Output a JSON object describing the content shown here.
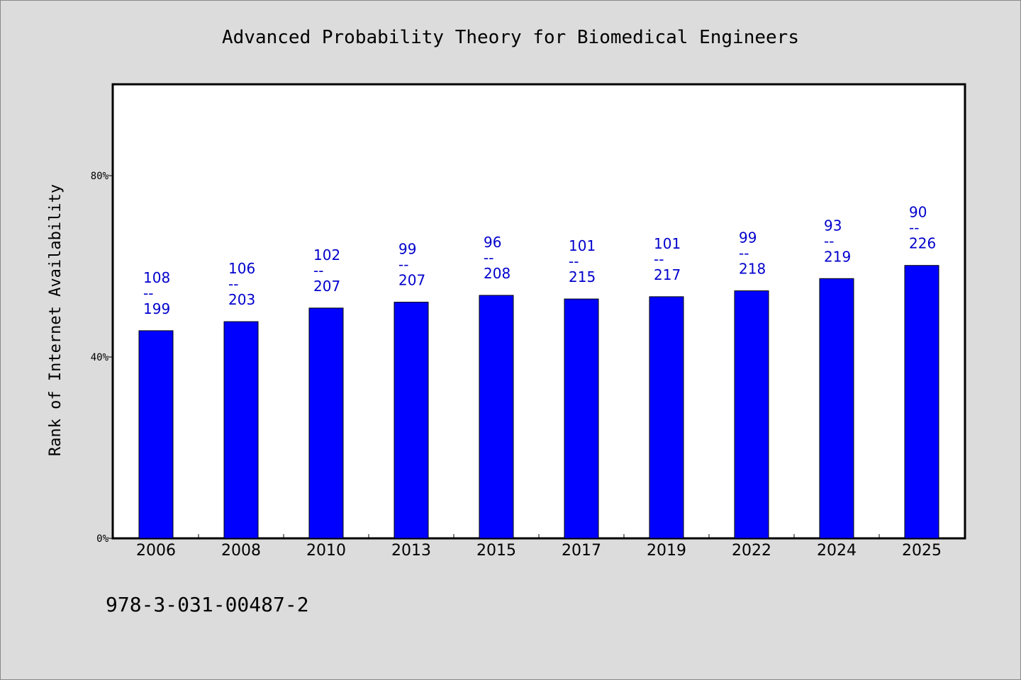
{
  "chart_data": {
    "type": "bar",
    "title": "Advanced Probability Theory for Biomedical Engineers",
    "ylabel": "Rank of Internet Availability",
    "xlabel": "",
    "ylim": [
      0,
      100
    ],
    "yticks": [
      0,
      40,
      80
    ],
    "ytick_labels": [
      "0%",
      "40%",
      "80%"
    ],
    "grid": false,
    "bar_color": "#0000ff",
    "label_color": "#0000cc",
    "categories": [
      "2006",
      "2008",
      "2010",
      "2013",
      "2015",
      "2017",
      "2019",
      "2022",
      "2024",
      "2025"
    ],
    "values": [
      45.8,
      47.8,
      50.8,
      52.1,
      53.6,
      52.8,
      53.3,
      54.6,
      57.3,
      60.2
    ],
    "data_labels": [
      {
        "top": "108",
        "sep": "--",
        "bottom": "199"
      },
      {
        "top": "106",
        "sep": "--",
        "bottom": "203"
      },
      {
        "top": "102",
        "sep": "--",
        "bottom": "207"
      },
      {
        "top": "99",
        "sep": "--",
        "bottom": "207"
      },
      {
        "top": "96",
        "sep": "--",
        "bottom": "208"
      },
      {
        "top": "101",
        "sep": "--",
        "bottom": "215"
      },
      {
        "top": "101",
        "sep": "--",
        "bottom": "217"
      },
      {
        "top": "99",
        "sep": "--",
        "bottom": "218"
      },
      {
        "top": "93",
        "sep": "--",
        "bottom": "219"
      },
      {
        "top": "90",
        "sep": "--",
        "bottom": "226"
      }
    ]
  },
  "footer": {
    "isbn": "978-3-031-00487-2"
  }
}
